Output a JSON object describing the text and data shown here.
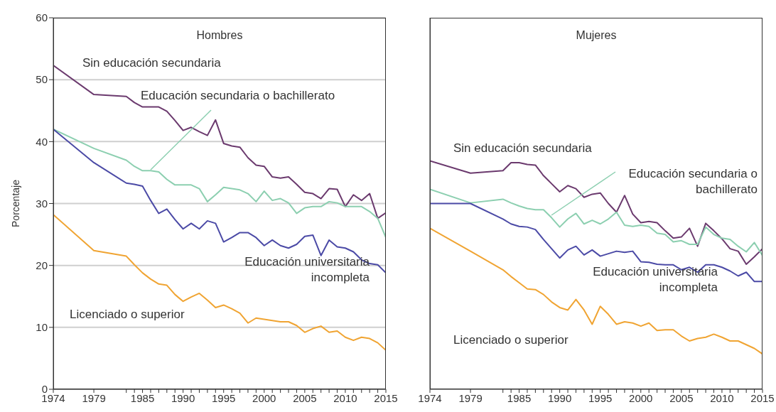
{
  "chart_data": [
    {
      "type": "line",
      "title": "Hombres",
      "ylabel": "Porcentaje",
      "x": [
        1974,
        1979,
        1983,
        1984,
        1985,
        1986,
        1987,
        1988,
        1989,
        1990,
        1991,
        1992,
        1993,
        1994,
        1995,
        1996,
        1997,
        1998,
        1999,
        2000,
        2001,
        2002,
        2003,
        2004,
        2005,
        2006,
        2007,
        2008,
        2009,
        2010,
        2011,
        2012,
        2013,
        2014,
        2015
      ],
      "series": [
        {
          "name": "Sin educación secundaria",
          "color": "#6b3a6e",
          "values": [
            52.3,
            47.6,
            47.3,
            46.3,
            45.6,
            45.6,
            45.6,
            44.9,
            43.4,
            41.8,
            42.3,
            41.6,
            41.0,
            43.5,
            39.7,
            39.3,
            39.1,
            37.4,
            36.2,
            36.0,
            34.3,
            34.1,
            34.3,
            33.1,
            31.8,
            31.6,
            30.8,
            32.4,
            32.3,
            29.5,
            31.4,
            30.5,
            31.6,
            27.6,
            28.5
          ]
        },
        {
          "name": "Educación secundaria o bachillerato",
          "color": "#8ccfb0",
          "values": [
            42.0,
            38.9,
            37.0,
            36.0,
            35.3,
            35.3,
            35.1,
            33.9,
            33.0,
            33.0,
            33.0,
            32.4,
            30.3,
            31.4,
            32.6,
            32.4,
            32.2,
            31.6,
            30.3,
            32.0,
            30.5,
            30.8,
            30.1,
            28.4,
            29.3,
            29.5,
            29.5,
            30.3,
            30.1,
            29.5,
            29.5,
            29.5,
            28.7,
            27.6,
            24.5
          ]
        },
        {
          "name": "Educación universitaria incompleta",
          "color": "#4b4aa6",
          "values": [
            42.0,
            36.6,
            33.3,
            33.1,
            32.8,
            30.5,
            28.4,
            29.1,
            27.4,
            25.9,
            26.8,
            25.9,
            27.2,
            26.8,
            23.8,
            24.5,
            25.3,
            25.3,
            24.5,
            23.2,
            24.1,
            23.2,
            22.8,
            23.4,
            24.7,
            24.9,
            21.6,
            24.1,
            23.0,
            22.8,
            22.2,
            20.9,
            20.3,
            20.1,
            18.8
          ]
        },
        {
          "name": "Licenciado o superior",
          "color": "#f0a432",
          "values": [
            28.2,
            22.4,
            21.5,
            20.1,
            18.8,
            17.8,
            17.0,
            16.8,
            15.3,
            14.2,
            14.9,
            15.5,
            14.4,
            13.2,
            13.6,
            13.0,
            12.3,
            10.7,
            11.5,
            11.3,
            11.1,
            10.9,
            10.9,
            10.3,
            9.2,
            9.8,
            10.2,
            9.2,
            9.4,
            8.4,
            7.9,
            8.4,
            8.2,
            7.5,
            6.3
          ]
        }
      ],
      "xlim": [
        1974,
        2015
      ],
      "ylim": [
        0,
        60
      ],
      "yticks": [
        0,
        10,
        20,
        30,
        40,
        50,
        60
      ],
      "xticks": [
        1974,
        1979,
        {
          "value": 1983,
          "label": null
        },
        {
          "value": 1984,
          "label": null
        },
        1985,
        {
          "value": 1986,
          "label": null
        },
        {
          "value": 1987,
          "label": null
        },
        {
          "value": 1988,
          "label": null
        },
        {
          "value": 1989,
          "label": null
        },
        1990,
        {
          "value": 1991,
          "label": null
        },
        {
          "value": 1992,
          "label": null
        },
        {
          "value": 1993,
          "label": null
        },
        {
          "value": 1994,
          "label": null
        },
        1995,
        {
          "value": 1996,
          "label": null
        },
        {
          "value": 1997,
          "label": null
        },
        {
          "value": 1998,
          "label": null
        },
        {
          "value": 1999,
          "label": null
        },
        2000,
        {
          "value": 2001,
          "label": null
        },
        {
          "value": 2002,
          "label": null
        },
        {
          "value": 2003,
          "label": null
        },
        {
          "value": 2004,
          "label": null
        },
        2005,
        {
          "value": 2006,
          "label": null
        },
        {
          "value": 2007,
          "label": null
        },
        {
          "value": 2008,
          "label": null
        },
        {
          "value": 2009,
          "label": null
        },
        2010,
        {
          "value": 2011,
          "label": null
        },
        {
          "value": 2012,
          "label": null
        },
        {
          "value": 2013,
          "label": null
        },
        {
          "value": 2014,
          "label": null
        },
        2015
      ],
      "grid": "y",
      "legend": false
    },
    {
      "type": "line",
      "title": "Mujeres",
      "x": [
        1974,
        1979,
        1983,
        1984,
        1985,
        1986,
        1987,
        1988,
        1989,
        1990,
        1991,
        1992,
        1993,
        1994,
        1995,
        1996,
        1997,
        1998,
        1999,
        2000,
        2001,
        2002,
        2003,
        2004,
        2005,
        2006,
        2007,
        2008,
        2009,
        2010,
        2011,
        2012,
        2013,
        2014,
        2015
      ],
      "series": [
        {
          "name": "Sin educación secundaria",
          "color": "#6b3a6e",
          "values": [
            36.9,
            34.9,
            35.3,
            36.6,
            36.6,
            36.3,
            36.2,
            34.5,
            33.2,
            31.9,
            32.9,
            32.4,
            31.0,
            31.5,
            31.7,
            30.0,
            28.6,
            31.3,
            28.3,
            26.9,
            27.1,
            26.9,
            25.6,
            24.4,
            24.6,
            26.0,
            23.1,
            26.8,
            25.6,
            24.3,
            22.7,
            22.3,
            20.2,
            21.4,
            22.7
          ]
        },
        {
          "name": "Educación secundaria o bachillerato",
          "color": "#8ccfb0",
          "values": [
            32.3,
            30.1,
            30.7,
            30.1,
            29.6,
            29.2,
            29.0,
            29.0,
            27.7,
            26.2,
            27.5,
            28.4,
            26.7,
            27.3,
            26.7,
            27.5,
            28.6,
            26.5,
            26.3,
            26.5,
            26.3,
            25.2,
            25.0,
            23.8,
            24.0,
            23.4,
            23.4,
            26.2,
            25.0,
            24.4,
            24.2,
            23.1,
            22.2,
            23.7,
            21.6
          ]
        },
        {
          "name": "Educación universitaria incompleta",
          "color": "#4b4aa6",
          "values": [
            30.0,
            30.0,
            27.5,
            26.7,
            26.3,
            26.2,
            25.8,
            24.2,
            22.7,
            21.2,
            22.5,
            23.1,
            21.7,
            22.5,
            21.5,
            21.9,
            22.3,
            22.1,
            22.3,
            20.6,
            20.5,
            20.2,
            20.1,
            20.1,
            19.3,
            19.7,
            18.9,
            20.1,
            20.1,
            19.7,
            19.1,
            18.3,
            18.9,
            17.4,
            17.4
          ]
        },
        {
          "name": "Licenciado o superior",
          "color": "#f0a432",
          "values": [
            26.0,
            22.3,
            19.3,
            18.2,
            17.2,
            16.2,
            16.1,
            15.3,
            14.1,
            13.2,
            12.8,
            14.5,
            12.8,
            10.5,
            13.4,
            12.1,
            10.5,
            10.9,
            10.7,
            10.2,
            10.7,
            9.5,
            9.6,
            9.6,
            8.6,
            7.8,
            8.2,
            8.4,
            8.9,
            8.4,
            7.8,
            7.8,
            7.2,
            6.6,
            5.7
          ]
        }
      ],
      "xlim": [
        1974,
        2015
      ],
      "ylim": [
        0,
        60
      ],
      "yticks": [
        0,
        10,
        20,
        30,
        40,
        50,
        60
      ],
      "xticks": [
        1974,
        1979,
        {
          "value": 1983,
          "label": null
        },
        {
          "value": 1984,
          "label": null
        },
        1985,
        {
          "value": 1986,
          "label": null
        },
        {
          "value": 1987,
          "label": null
        },
        {
          "value": 1988,
          "label": null
        },
        {
          "value": 1989,
          "label": null
        },
        1990,
        {
          "value": 1991,
          "label": null
        },
        {
          "value": 1992,
          "label": null
        },
        {
          "value": 1993,
          "label": null
        },
        {
          "value": 1994,
          "label": null
        },
        1995,
        {
          "value": 1996,
          "label": null
        },
        {
          "value": 1997,
          "label": null
        },
        {
          "value": 1998,
          "label": null
        },
        {
          "value": 1999,
          "label": null
        },
        2000,
        {
          "value": 2001,
          "label": null
        },
        {
          "value": 2002,
          "label": null
        },
        {
          "value": 2003,
          "label": null
        },
        {
          "value": 2004,
          "label": null
        },
        2005,
        {
          "value": 2006,
          "label": null
        },
        {
          "value": 2007,
          "label": null
        },
        {
          "value": 2008,
          "label": null
        },
        {
          "value": 2009,
          "label": null
        },
        2010,
        {
          "value": 2011,
          "label": null
        },
        {
          "value": 2012,
          "label": null
        },
        {
          "value": 2013,
          "label": null
        },
        {
          "value": 2014,
          "label": null
        },
        2015
      ],
      "grid": "y",
      "legend": false,
      "tick_labels": "x"
    }
  ]
}
